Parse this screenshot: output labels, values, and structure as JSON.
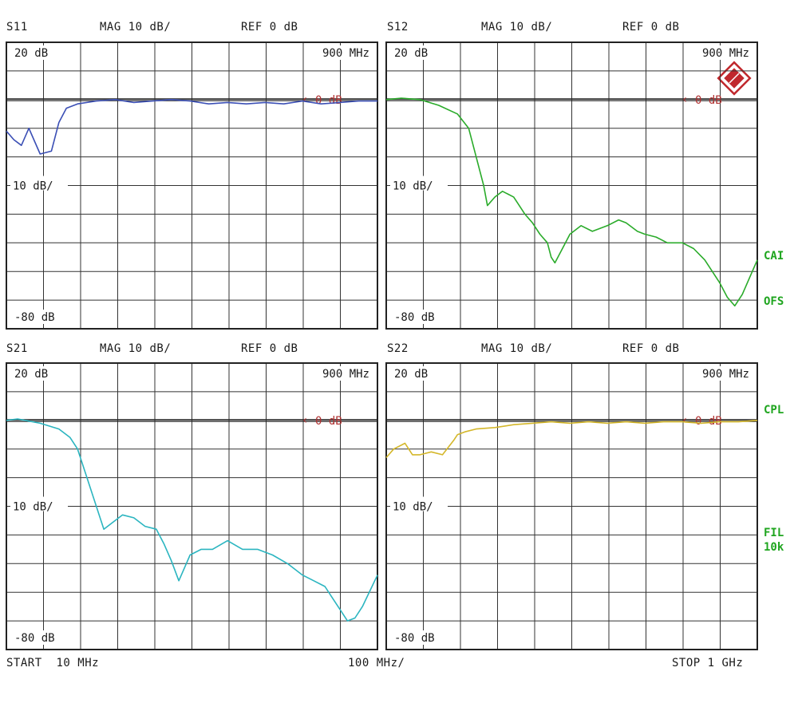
{
  "colors": {
    "frame": "#222222",
    "grid": "#333333",
    "text": "#1a1a1a",
    "ref_marker": "#b03030",
    "side_label": "#1fa51f",
    "logo": "#c0282d"
  },
  "panels": [
    {
      "id": "s11",
      "param": "S11",
      "mag": "MAG 10 dB/",
      "ref": "REF 0 dB",
      "top_label": "20 dB",
      "mid_label": "10 dB/",
      "bottom_label": "-80 dB",
      "freq_label": "900 MHz",
      "ref_marker": "0 dB",
      "trace_color": "#3b4fb5"
    },
    {
      "id": "s12",
      "param": "S12",
      "mag": "MAG 10 dB/",
      "ref": "REF 0 dB",
      "top_label": "20 dB",
      "mid_label": "10 dB/",
      "bottom_label": "-80 dB",
      "freq_label": "900 MHz",
      "ref_marker": "0 dB",
      "trace_color": "#2aab2a"
    },
    {
      "id": "s21",
      "param": "S21",
      "mag": "MAG 10 dB/",
      "ref": "REF 0 dB",
      "top_label": "20 dB",
      "mid_label": "10 dB/",
      "bottom_label": "-80 dB",
      "freq_label": "900 MHz",
      "ref_marker": "0 dB",
      "trace_color": "#2bb5c0"
    },
    {
      "id": "s22",
      "param": "S22",
      "mag": "MAG 10 dB/",
      "ref": "REF 0 dB",
      "top_label": "20 dB",
      "mid_label": "10 dB/",
      "bottom_label": "-80 dB",
      "freq_label": "900 MHz",
      "ref_marker": "0 dB",
      "trace_color": "#d4b72a"
    }
  ],
  "side_labels": {
    "cai": "CAI",
    "ofs": "OFS",
    "cpl": "CPL",
    "fil": "FIL",
    "fil_bw": "10k"
  },
  "footer": {
    "start": "START  10 MHz",
    "span": "100 MHz/",
    "stop": "STOP 1 GHz"
  },
  "chart_data": [
    {
      "type": "line",
      "title": "S11",
      "xlabel": "",
      "ylabel": "MAG 10 dB/",
      "xlim": [
        10,
        1000
      ],
      "ylim": [
        -80,
        20
      ],
      "x_unit": "MHz",
      "y_unit": "dB",
      "grid": true,
      "series": [
        {
          "x": [
            10,
            30,
            50,
            70,
            80,
            100,
            130,
            150,
            170,
            200,
            250,
            300,
            350,
            400,
            450,
            500,
            550,
            600,
            650,
            700,
            750,
            800,
            850,
            900,
            950,
            1000
          ],
          "y": [
            -11,
            -14,
            -16,
            -10,
            -13,
            -19,
            -18,
            -8,
            -3,
            -1.5,
            -0.5,
            0,
            -1,
            -0.5,
            0,
            -0.5,
            -1.5,
            -1,
            -1.5,
            -1,
            -1.5,
            -0.5,
            -1.5,
            -1,
            -0.5,
            -0.5
          ]
        }
      ]
    },
    {
      "type": "line",
      "title": "S12",
      "xlabel": "",
      "ylabel": "MAG 10 dB/",
      "xlim": [
        10,
        1000
      ],
      "ylim": [
        -80,
        20
      ],
      "x_unit": "MHz",
      "y_unit": "dB",
      "grid": true,
      "series": [
        {
          "x": [
            10,
            50,
            100,
            150,
            200,
            230,
            250,
            270,
            280,
            300,
            320,
            350,
            380,
            400,
            420,
            440,
            450,
            460,
            480,
            500,
            530,
            560,
            600,
            630,
            650,
            680,
            700,
            730,
            760,
            800,
            830,
            860,
            880,
            900,
            920,
            940,
            960,
            1000
          ],
          "y": [
            0,
            0.5,
            0,
            -2,
            -5,
            -10,
            -20,
            -30,
            -37,
            -34,
            -32,
            -34,
            -40,
            -43,
            -47,
            -50,
            -55,
            -57,
            -52,
            -47,
            -44,
            -46,
            -44,
            -42,
            -43,
            -46,
            -47,
            -48,
            -50,
            -50,
            -52,
            -56,
            -60,
            -64,
            -69,
            -72,
            -68,
            -56
          ]
        }
      ]
    },
    {
      "type": "line",
      "title": "S21",
      "xlabel": "",
      "ylabel": "MAG 10 dB/",
      "xlim": [
        10,
        1000
      ],
      "ylim": [
        -80,
        20
      ],
      "x_unit": "MHz",
      "y_unit": "dB",
      "grid": true,
      "series": [
        {
          "x": [
            10,
            40,
            60,
            100,
            150,
            180,
            200,
            220,
            250,
            270,
            290,
            320,
            350,
            380,
            410,
            430,
            450,
            470,
            480,
            500,
            530,
            560,
            600,
            640,
            680,
            720,
            760,
            800,
            830,
            860,
            880,
            900,
            920,
            940,
            960,
            1000
          ],
          "y": [
            0,
            0.5,
            0,
            -1,
            -3,
            -6,
            -10,
            -18,
            -30,
            -38,
            -36,
            -33,
            -34,
            -37,
            -38,
            -43,
            -49,
            -56,
            -53,
            -47,
            -45,
            -45,
            -42,
            -45,
            -45,
            -47,
            -50,
            -54,
            -56,
            -58,
            -62,
            -66,
            -70,
            -69,
            -65,
            -54
          ]
        }
      ]
    },
    {
      "type": "line",
      "title": "S22",
      "xlabel": "",
      "ylabel": "MAG 10 dB/",
      "xlim": [
        10,
        1000
      ],
      "ylim": [
        -80,
        20
      ],
      "x_unit": "MHz",
      "y_unit": "dB",
      "grid": true,
      "series": [
        {
          "x": [
            10,
            30,
            60,
            80,
            100,
            130,
            160,
            190,
            200,
            220,
            250,
            300,
            350,
            400,
            450,
            500,
            550,
            600,
            650,
            700,
            750,
            800,
            850,
            900,
            950,
            1000
          ],
          "y": [
            -13,
            -10,
            -8,
            -12,
            -12,
            -11,
            -12,
            -7,
            -5,
            -4,
            -3,
            -2.5,
            -1.5,
            -1,
            -0.5,
            -1,
            -0.5,
            -1,
            -0.5,
            -1,
            -0.5,
            -0.5,
            -1,
            -0.5,
            -0.5,
            0
          ]
        }
      ]
    }
  ]
}
